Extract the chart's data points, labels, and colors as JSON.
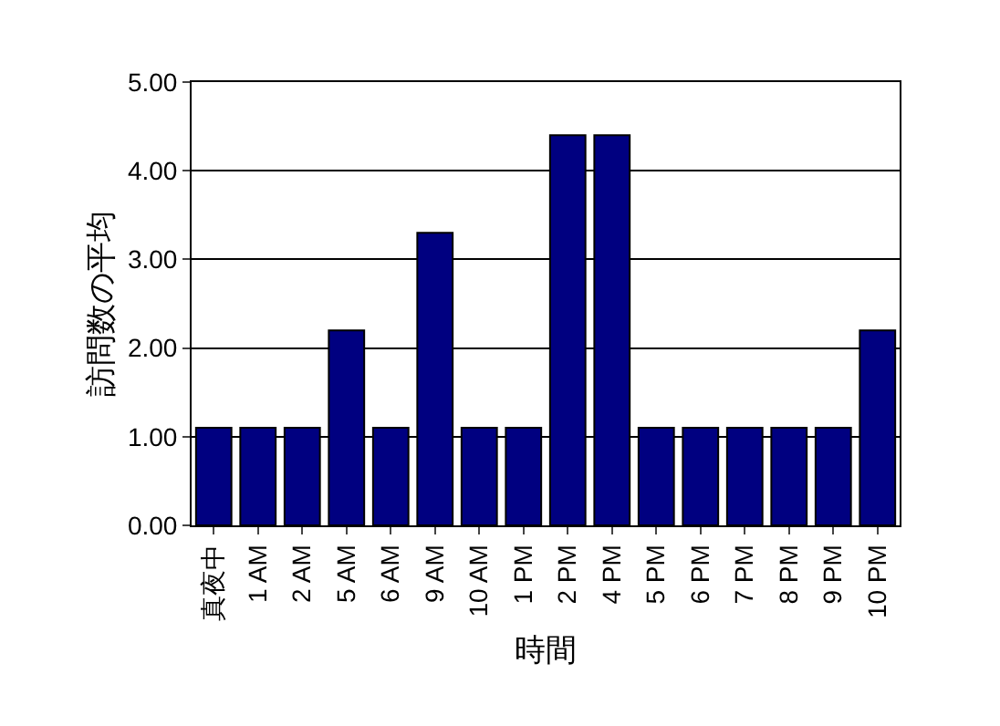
{
  "chart_data": {
    "type": "bar",
    "xlabel": "時間",
    "ylabel": "訪問数の平均",
    "categories": [
      "真夜中",
      "1 AM",
      "2 AM",
      "5 AM",
      "6 AM",
      "9 AM",
      "10 AM",
      "1 PM",
      "2 PM",
      "4 PM",
      "5 PM",
      "6 PM",
      "7 PM",
      "8 PM",
      "9 PM",
      "10 PM"
    ],
    "values": [
      1.1,
      1.1,
      1.1,
      2.2,
      1.1,
      3.3,
      1.1,
      1.1,
      4.4,
      4.4,
      1.1,
      1.1,
      1.1,
      1.1,
      1.1,
      2.2
    ],
    "color": "#000080",
    "ylim": [
      0,
      5
    ],
    "yticks": [
      {
        "value": 0,
        "label": "0.00"
      },
      {
        "value": 1,
        "label": "1.00"
      },
      {
        "value": 2,
        "label": "2.00"
      },
      {
        "value": 3,
        "label": "3.00"
      },
      {
        "value": 4,
        "label": "4.00"
      },
      {
        "value": 5,
        "label": "5.00"
      }
    ],
    "grid": "y",
    "legend": false
  }
}
